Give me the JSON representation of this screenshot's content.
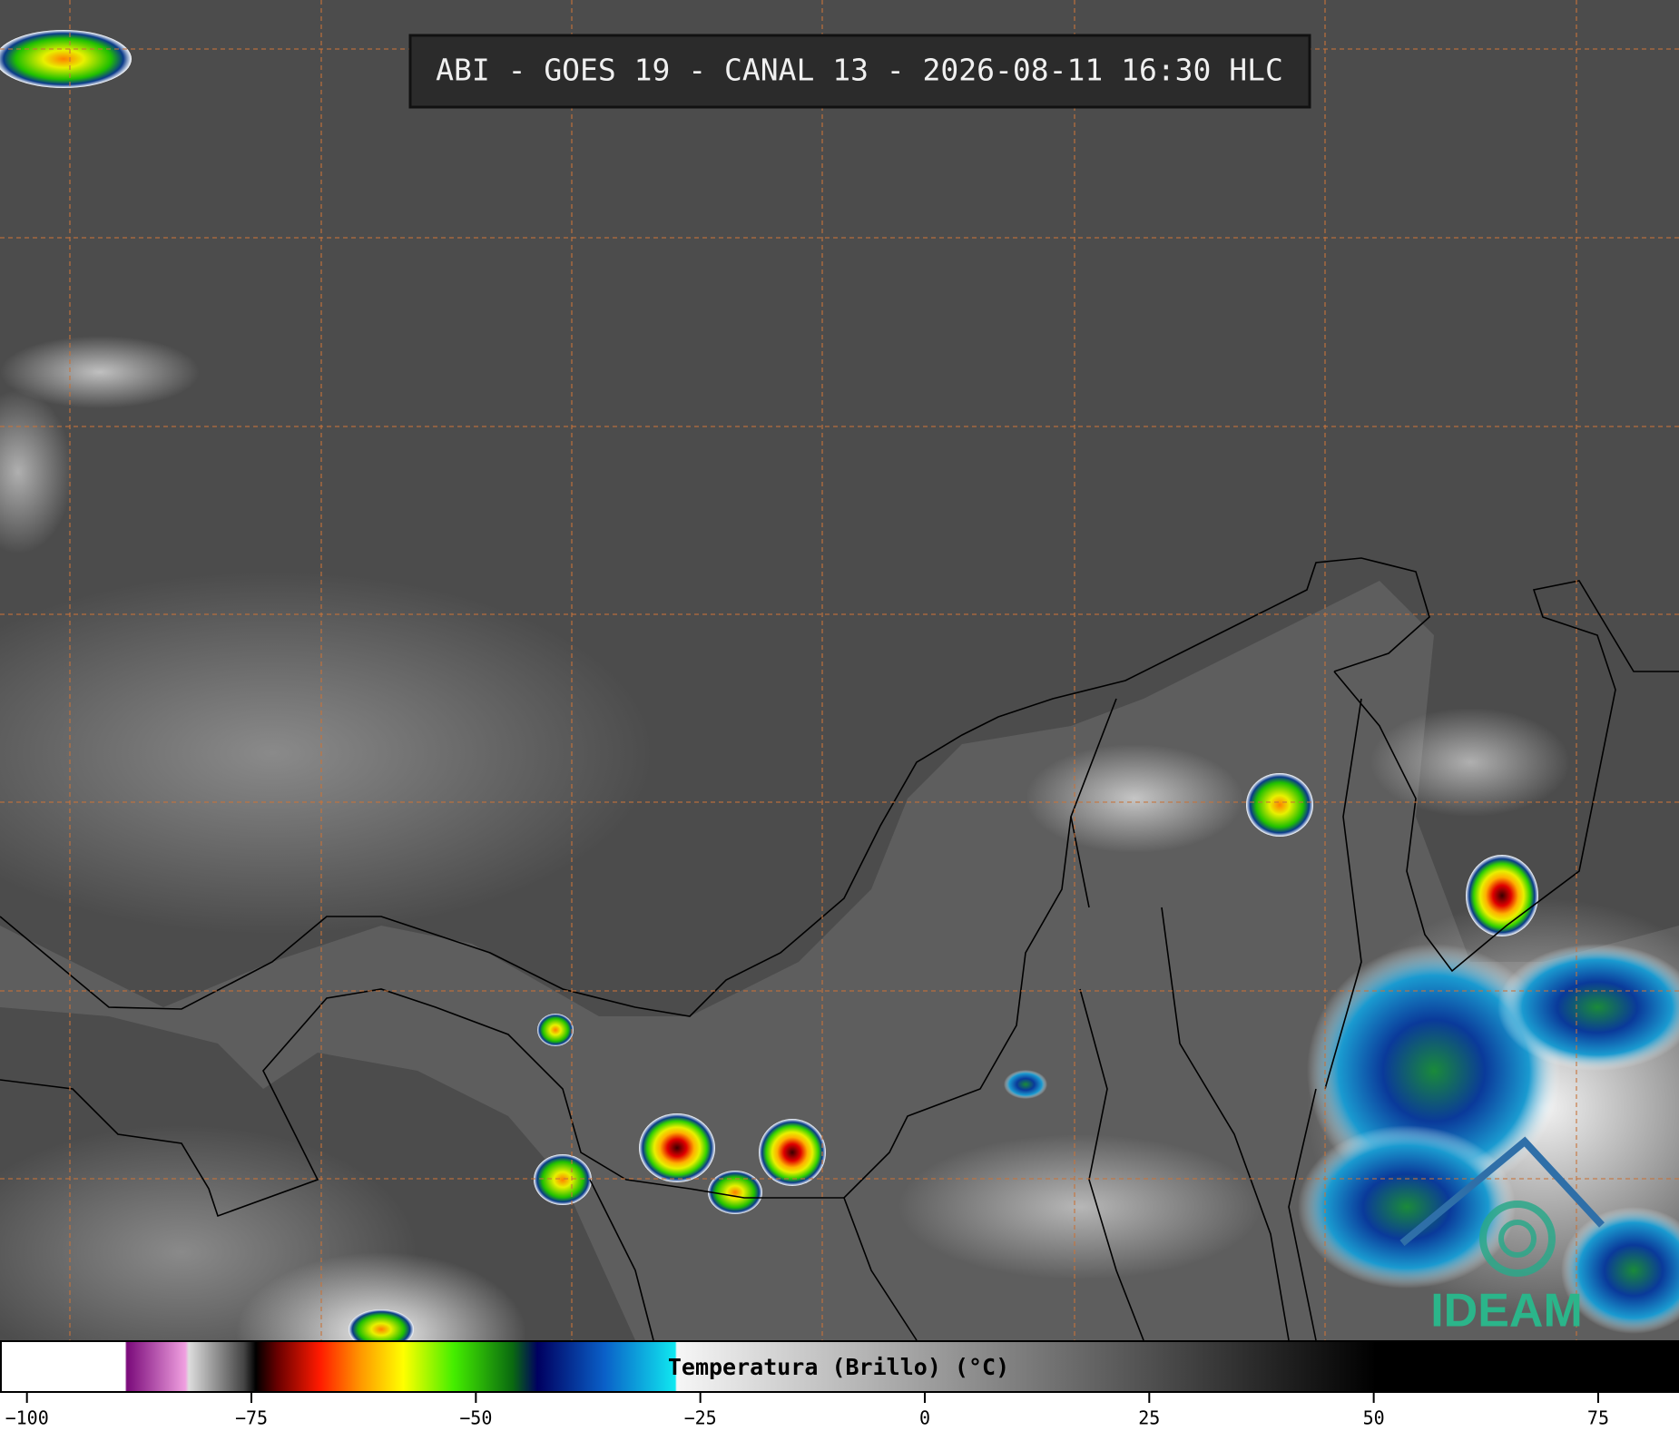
{
  "header": {
    "title": "ABI - GOES 19 - CANAL 13 - 2026-08-11 16:30 HLC"
  },
  "colorbar": {
    "label": "Temperatura (Brillo) (°C)",
    "xlim": [
      -103,
      84
    ],
    "ticks": [
      {
        "value": -100,
        "label": "−100"
      },
      {
        "value": -75,
        "label": "−75"
      },
      {
        "value": -50,
        "label": "−50"
      },
      {
        "value": -25,
        "label": "−25"
      },
      0,
      25,
      50,
      75
    ]
  },
  "logo": {
    "text": "IDEAM"
  }
}
